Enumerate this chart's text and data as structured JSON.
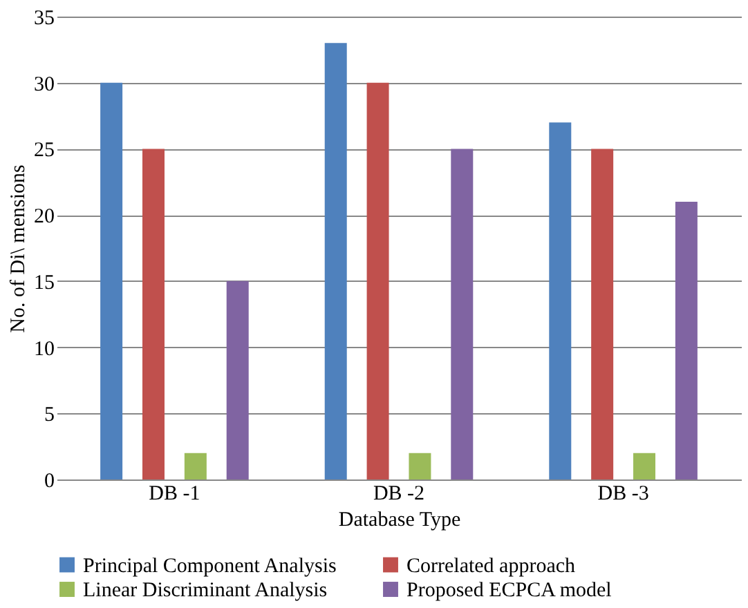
{
  "chart_data": {
    "type": "bar",
    "xlabel": "Database Type",
    "ylabel": "No. of Di\\ mensions",
    "categories": [
      "DB -1",
      "DB -2",
      "DB -3"
    ],
    "series": [
      {
        "name": "Principal Component Analysis",
        "color": "#4f81bd",
        "values": [
          30,
          33,
          27
        ]
      },
      {
        "name": "Correlated approach",
        "color": "#c0504d",
        "values": [
          25,
          30,
          25
        ]
      },
      {
        "name": "Linear Discriminant Analysis",
        "color": "#9bbb59",
        "values": [
          2,
          2,
          2
        ]
      },
      {
        "name": "Proposed ECPCA model",
        "color": "#8064a2",
        "values": [
          15,
          25,
          21
        ]
      }
    ],
    "ylim": [
      0,
      35
    ],
    "yticks": [
      0,
      5,
      10,
      15,
      20,
      25,
      30,
      35
    ],
    "grid": "y",
    "legend": "bottom"
  }
}
